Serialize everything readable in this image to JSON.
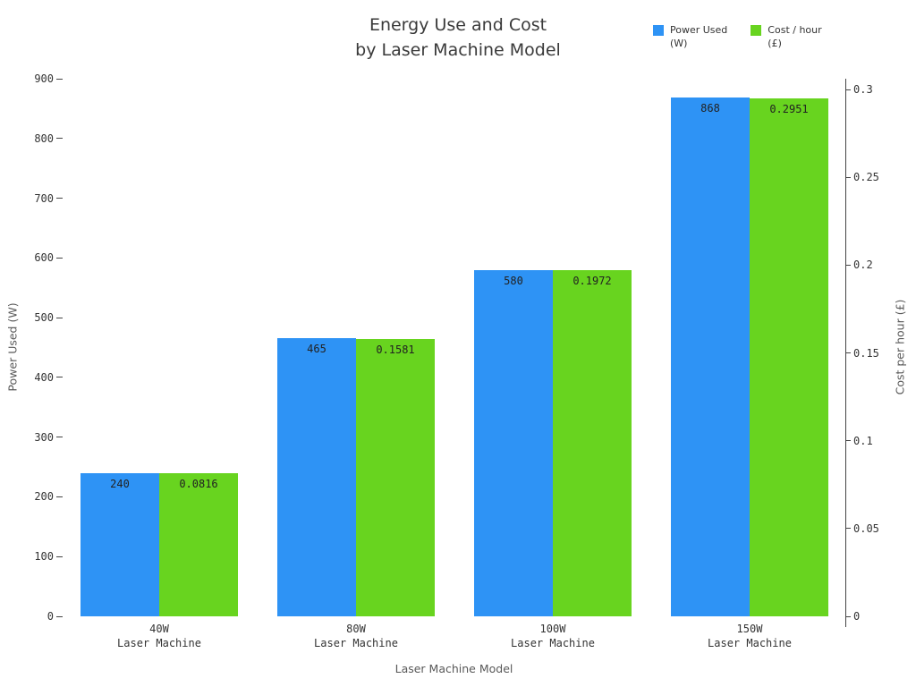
{
  "chart_data": {
    "type": "bar",
    "title": "Energy Use and Cost\nby Laser Machine Model",
    "xlabel": "Laser Machine Model",
    "legend_position": "top-right",
    "grid": false,
    "categories": [
      {
        "line1": "40W",
        "line2": "Laser Machine"
      },
      {
        "line1": "80W",
        "line2": "Laser Machine"
      },
      {
        "line1": "100W",
        "line2": "Laser Machine"
      },
      {
        "line1": "150W",
        "line2": "Laser Machine"
      }
    ],
    "left_axis": {
      "label": "Power Used (W)",
      "min": 0,
      "max": 900,
      "ticks": [
        0,
        100,
        200,
        300,
        400,
        500,
        600,
        700,
        800,
        900
      ],
      "tick_labels": [
        "0",
        "100",
        "200",
        "300",
        "400",
        "500",
        "600",
        "700",
        "800",
        "900"
      ]
    },
    "right_axis": {
      "label": "Cost per hour (£)",
      "min": 0,
      "max": 0.3,
      "ticks": [
        0,
        0.05,
        0.1,
        0.15,
        0.2,
        0.25,
        0.3
      ],
      "tick_labels": [
        "0",
        "0.05",
        "0.1",
        "0.15",
        "0.2",
        "0.25",
        "0.3"
      ]
    },
    "series": [
      {
        "name": "Power Used\n(W)",
        "axis": "left",
        "color": "#2e93f5",
        "values": [
          240,
          465,
          580,
          868
        ],
        "value_labels": [
          "240",
          "465",
          "580",
          "868"
        ]
      },
      {
        "name": "Cost / hour\n(£)",
        "axis": "right",
        "color": "#68d41f",
        "values": [
          0.0816,
          0.1581,
          0.1972,
          0.2951
        ],
        "value_labels": [
          "0.0816",
          "0.1581",
          "0.1972",
          "0.2951"
        ]
      }
    ]
  }
}
